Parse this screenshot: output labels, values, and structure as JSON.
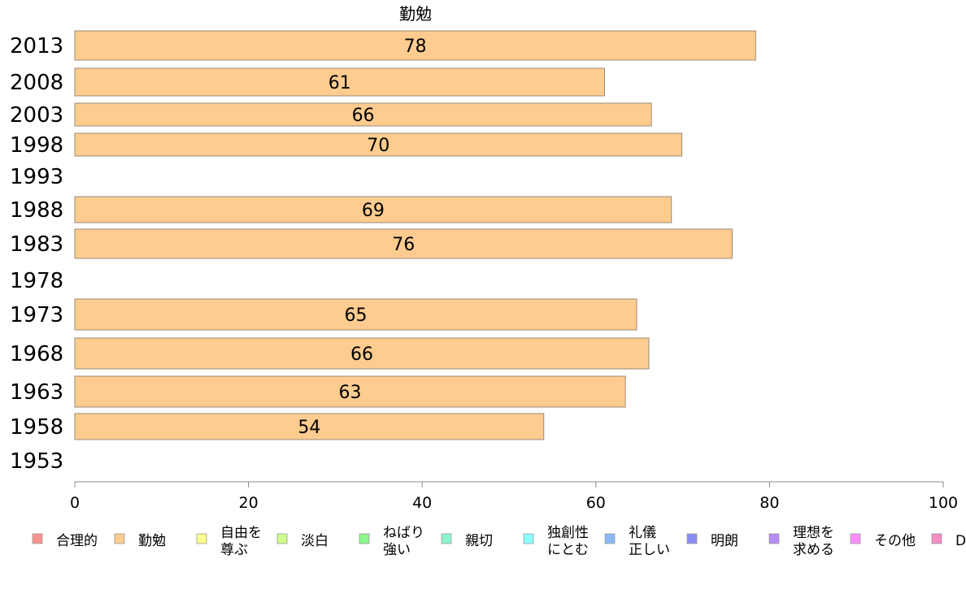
{
  "chart_data": {
    "type": "bar",
    "orientation": "horizontal",
    "title": "勤勉",
    "categories": [
      "2013",
      "2008",
      "2003",
      "1998",
      "1993",
      "1988",
      "1983",
      "1978",
      "1973",
      "1968",
      "1963",
      "1958",
      "1953"
    ],
    "series": [
      {
        "name": "勤勉",
        "color": "#FFCC8F",
        "values": [
          78.4,
          61.0,
          66.4,
          69.9,
          null,
          68.7,
          75.7,
          null,
          64.7,
          66.1,
          63.4,
          54.0,
          null
        ],
        "labels": [
          "78",
          "61",
          "66",
          "70",
          "",
          "69",
          "76",
          "",
          "65",
          "66",
          "63",
          "54",
          ""
        ]
      }
    ],
    "xlim": [
      0,
      100
    ],
    "xticks": [
      0,
      20,
      40,
      60,
      80,
      100
    ],
    "xlabel": "",
    "ylabel": "",
    "grid": false,
    "legend_position": "bottom",
    "legend": [
      {
        "label": [
          "合理的"
        ],
        "color": "#F7948D"
      },
      {
        "label": [
          "勤勉"
        ],
        "color": "#FFCC8F"
      },
      {
        "label": [
          "自由を",
          "尊ぶ"
        ],
        "color": "#FFFF8C"
      },
      {
        "label": [
          "淡白"
        ],
        "color": "#CCFF8C"
      },
      {
        "label": [
          "ねばり",
          "強い"
        ],
        "color": "#8CF58C"
      },
      {
        "label": [
          "親切"
        ],
        "color": "#8CF5CC"
      },
      {
        "label": [
          "独創性",
          "にとむ"
        ],
        "color": "#8CFFFF"
      },
      {
        "label": [
          "礼儀",
          "正しい"
        ],
        "color": "#8CB8F5"
      },
      {
        "label": [
          "明朗"
        ],
        "color": "#8C8CF5"
      },
      {
        "label": [
          "理想を",
          "求める"
        ],
        "color": "#B88CF5"
      },
      {
        "label": [
          "その他"
        ],
        "color": "#FF8CFF"
      },
      {
        "label": [
          "D"
        ],
        "color": "#F58CC4"
      }
    ]
  }
}
